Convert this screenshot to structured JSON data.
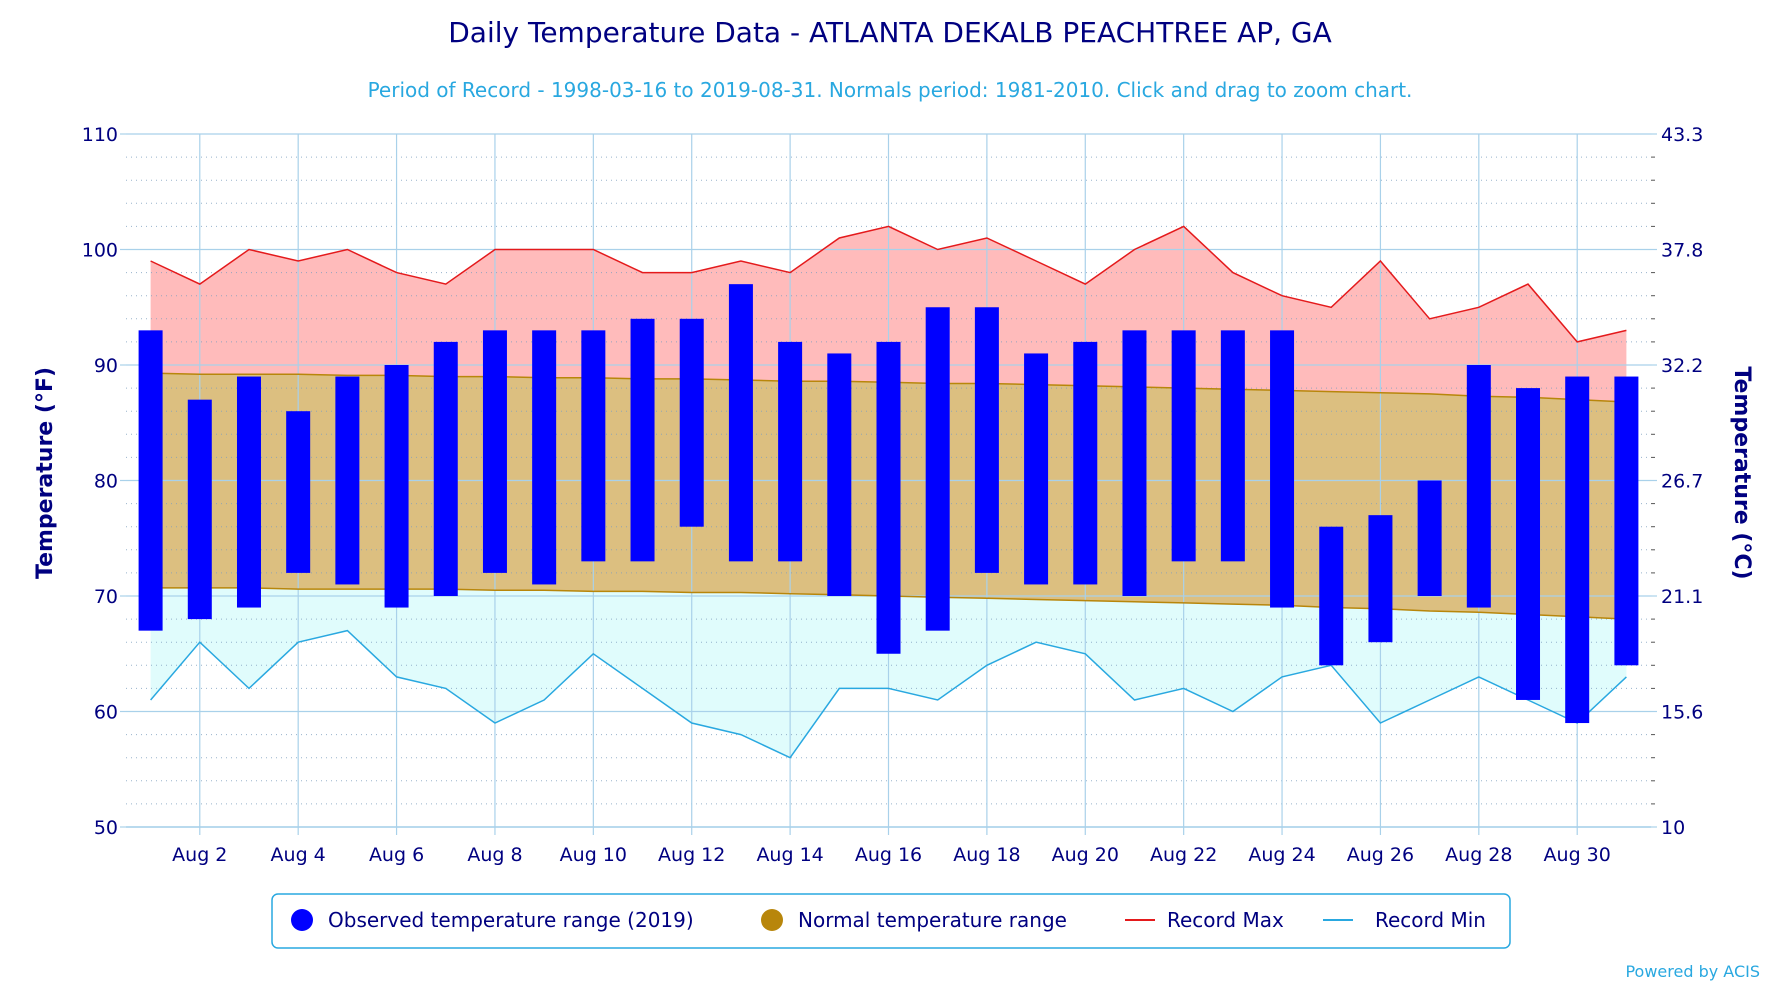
{
  "chart_data": {
    "type": "bar",
    "title": "Daily Temperature Data - ATLANTA DEKALB PEACHTREE AP, GA",
    "subtitle": "Period of Record - 1998-03-16 to 2019-08-31. Normals period: 1981-2010. Click and drag to zoom chart.",
    "ylabel_left": "Temperature (°F)",
    "ylabel_right": "Temperature (°C)",
    "ylim": [
      50,
      110
    ],
    "y_ticks": [
      50,
      60,
      70,
      80,
      90,
      100,
      110
    ],
    "y_ticks_right": [
      "10",
      "15.6",
      "21.1",
      "26.7",
      "32.2",
      "37.8",
      "43.3"
    ],
    "x_tick_days": [
      2,
      4,
      6,
      8,
      10,
      12,
      14,
      16,
      18,
      20,
      22,
      24,
      26,
      28,
      30
    ],
    "x_tick_labels": [
      "Aug 2",
      "Aug 4",
      "Aug 6",
      "Aug 8",
      "Aug 10",
      "Aug 12",
      "Aug 14",
      "Aug 16",
      "Aug 18",
      "Aug 20",
      "Aug 22",
      "Aug 24",
      "Aug 26",
      "Aug 28",
      "Aug 30"
    ],
    "days": [
      1,
      2,
      3,
      4,
      5,
      6,
      7,
      8,
      9,
      10,
      11,
      12,
      13,
      14,
      15,
      16,
      17,
      18,
      19,
      20,
      21,
      22,
      23,
      24,
      25,
      26,
      27,
      28,
      29,
      30,
      31
    ],
    "observed_max": [
      93,
      87,
      89,
      86,
      89,
      90,
      92,
      93,
      93,
      93,
      94,
      94,
      97,
      92,
      91,
      92,
      95,
      95,
      91,
      92,
      93,
      93,
      93,
      93,
      76,
      77,
      80,
      90,
      88,
      89,
      89
    ],
    "observed_min": [
      67,
      68,
      69,
      72,
      71,
      69,
      70,
      72,
      71,
      73,
      73,
      76,
      73,
      73,
      70,
      65,
      67,
      72,
      71,
      71,
      70,
      73,
      73,
      69,
      64,
      66,
      70,
      69,
      61,
      59,
      64
    ],
    "normal_max": [
      89.3,
      89.2,
      89.2,
      89.2,
      89.1,
      89.1,
      89.0,
      89.0,
      88.9,
      88.9,
      88.8,
      88.8,
      88.7,
      88.6,
      88.6,
      88.5,
      88.4,
      88.4,
      88.3,
      88.2,
      88.1,
      88.0,
      87.9,
      87.8,
      87.7,
      87.6,
      87.5,
      87.3,
      87.2,
      87.0,
      86.8
    ],
    "normal_min": [
      70.7,
      70.7,
      70.7,
      70.6,
      70.6,
      70.6,
      70.6,
      70.5,
      70.5,
      70.4,
      70.4,
      70.3,
      70.3,
      70.2,
      70.1,
      70.0,
      69.9,
      69.8,
      69.7,
      69.6,
      69.5,
      69.4,
      69.3,
      69.2,
      69.0,
      68.9,
      68.7,
      68.6,
      68.4,
      68.2,
      68.0
    ],
    "record_max": [
      99,
      97,
      100,
      99,
      100,
      98,
      97,
      100,
      100,
      100,
      98,
      98,
      99,
      98,
      101,
      102,
      100,
      101,
      99,
      97,
      100,
      102,
      98,
      96,
      95,
      99,
      94,
      95,
      97,
      92,
      93
    ],
    "record_min": [
      61,
      66,
      62,
      66,
      67,
      63,
      62,
      59,
      61,
      65,
      62,
      59,
      58,
      56,
      62,
      62,
      61,
      64,
      66,
      65,
      61,
      62,
      60,
      63,
      64,
      59,
      61,
      63,
      61,
      59,
      63
    ],
    "legend": [
      {
        "label": "Observed temperature range (2019)",
        "color": "#0000ff",
        "marker": "circle"
      },
      {
        "label": "Normal temperature range",
        "color": "#b8860b",
        "marker": "circle"
      },
      {
        "label": "Record Max",
        "color": "#e41a1c",
        "marker": "line"
      },
      {
        "label": "Record Min",
        "color": "#29a8e0",
        "marker": "line"
      }
    ],
    "legend_position": "bottom-center",
    "grid": true,
    "credit": "Powered by ACIS",
    "colors": {
      "observed": "#0000ff",
      "normal_fill": "#dcbf80",
      "normal_line": "#b8860b",
      "record_max_line": "#e41a1c",
      "record_max_fill": "#ffbbbb",
      "record_min_line": "#29a8e0",
      "record_min_fill": "#e0fcfc",
      "axis_text": "#000080",
      "subtitle": "#29a8e0",
      "grid": "#a9d1ea"
    }
  }
}
